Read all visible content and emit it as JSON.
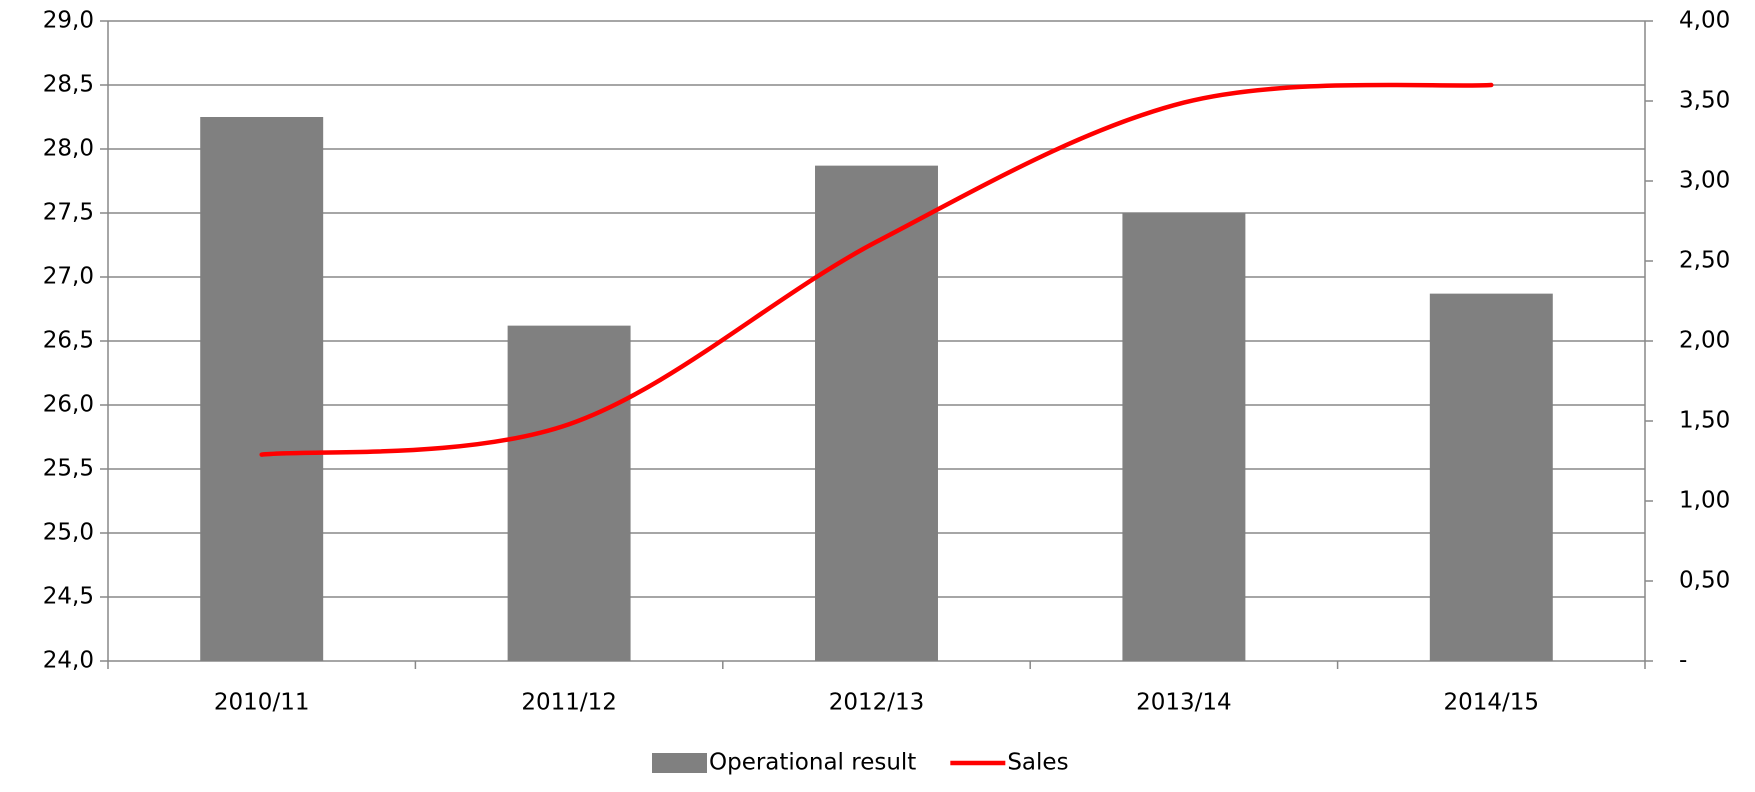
{
  "chart_data": {
    "type": "bar_line",
    "categories": [
      "2010/11",
      "2011/12",
      "2012/13",
      "2013/14",
      "2014/15"
    ],
    "series": [
      {
        "name": "Operational result",
        "type": "bar",
        "color": "#808080",
        "values": [
          28.25,
          26.62,
          27.87,
          27.5,
          26.87
        ]
      },
      {
        "name": "Sales",
        "type": "line",
        "axis": "y2",
        "color": "#ff0000",
        "smooth": true,
        "values": [
          1.29,
          1.48,
          2.62,
          3.49,
          3.6
        ]
      }
    ],
    "ylim": [
      24,
      29
    ],
    "yticks": [
      {
        "value": 24,
        "label": "24,0"
      },
      {
        "value": 24.5,
        "label": "24,5"
      },
      {
        "value": 25,
        "label": "25,0"
      },
      {
        "value": 25.5,
        "label": "25,5"
      },
      {
        "value": 26,
        "label": "26,0"
      },
      {
        "value": 26.5,
        "label": "26,5"
      },
      {
        "value": 27,
        "label": "27,0"
      },
      {
        "value": 27.5,
        "label": "27,5"
      },
      {
        "value": 28,
        "label": "28,0"
      },
      {
        "value": 28.5,
        "label": "28,5"
      },
      {
        "value": 29,
        "label": "29,0"
      }
    ],
    "y2lim": [
      0,
      4
    ],
    "y2ticks": [
      {
        "value": 0,
        "label": "-"
      },
      {
        "value": 0.5,
        "label": "0,50"
      },
      {
        "value": 1,
        "label": "1,00"
      },
      {
        "value": 1.5,
        "label": "1,50"
      },
      {
        "value": 2,
        "label": "2,00"
      },
      {
        "value": 2.5,
        "label": "2,50"
      },
      {
        "value": 3,
        "label": "3,00"
      },
      {
        "value": 3.5,
        "label": "3,50"
      },
      {
        "value": 4,
        "label": "4,00"
      }
    ],
    "grid": true,
    "legend": "bottom"
  }
}
